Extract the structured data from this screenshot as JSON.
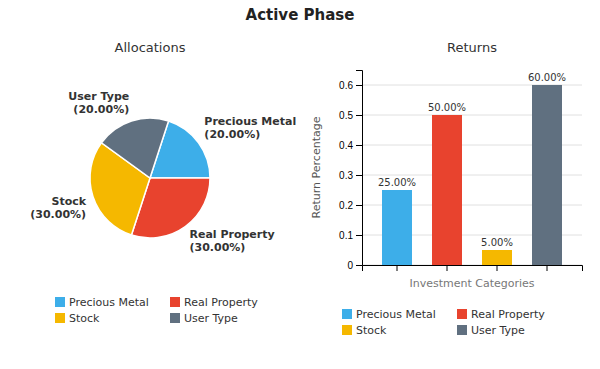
{
  "title": "Active Phase",
  "chart_data": [
    {
      "type": "pie",
      "title": "Allocations",
      "categories": [
        "Precious Metal",
        "Real Property",
        "Stock",
        "User Type"
      ],
      "values": [
        20,
        30,
        30,
        20
      ],
      "value_labels": [
        "(20.00%)",
        "(30.00%)",
        "(30.00%)",
        "(20.00%)"
      ],
      "colors": [
        "#3daee9",
        "#e8432e",
        "#f5b800",
        "#607080"
      ],
      "data_labels": true,
      "legend": "bottom"
    },
    {
      "type": "bar",
      "title": "Returns",
      "categories": [
        "Precious Metal",
        "Real Property",
        "Stock",
        "User Type"
      ],
      "values": [
        0.25,
        0.5,
        0.05,
        0.6
      ],
      "value_labels": [
        "25.00%",
        "50.00%",
        "5.00%",
        "60.00%"
      ],
      "colors": [
        "#3daee9",
        "#e8432e",
        "#f5b800",
        "#607080"
      ],
      "xlabel": "Investment Categories",
      "ylabel": "Return Percentage",
      "ylim": [
        0,
        0.65
      ],
      "yticks": [
        0,
        0.1,
        0.2,
        0.3,
        0.4,
        0.5,
        0.6
      ],
      "grid": true,
      "data_labels": true,
      "legend": "bottom",
      "tick_labels": "y"
    }
  ]
}
